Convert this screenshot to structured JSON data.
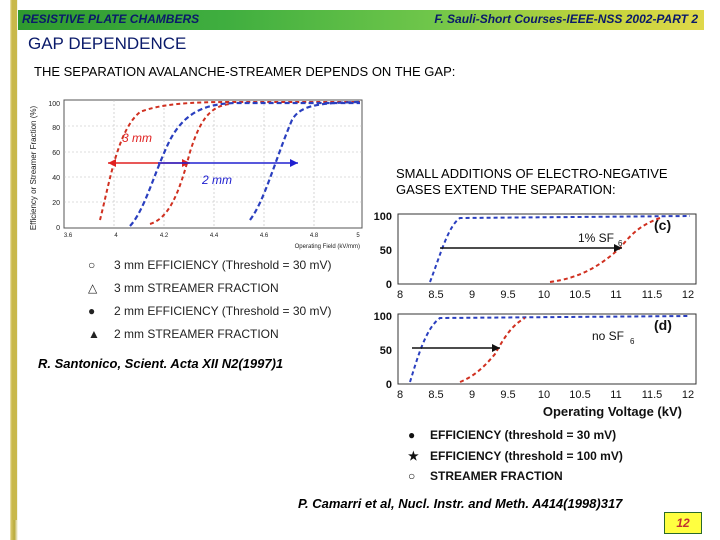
{
  "header": {
    "left": "RESISTIVE PLATE CHAMBERS",
    "right": "F. Sauli-Short Courses-IEEE-NSS 2002-PART 2"
  },
  "title": "GAP DEPENDENCE",
  "subtitle": "THE SEPARATION AVALANCHE-STREAMER DEPENDS ON THE GAP:",
  "note": "SMALL ADDITIONS OF ELECTRO-NEGATIVE GASES EXTEND THE SEPARATION:",
  "left_plot": {
    "ylabel": "Efficiency or Streamer Fraction (%)",
    "xlabel": "Operating Field (kV/mm)",
    "yticks": [
      "100",
      "80",
      "60",
      "40",
      "20",
      "0"
    ],
    "xticks": [
      "3.6",
      "4",
      "4.2",
      "4.4",
      "4.6",
      "4.8",
      "5"
    ],
    "label_3mm": "3 mm",
    "label_2mm": "2 mm"
  },
  "left_legend": [
    {
      "symbol": "○",
      "text": "3 mm EFFICIENCY (Threshold = 30 mV)"
    },
    {
      "symbol": "△",
      "text": "3 mm STREAMER FRACTION"
    },
    {
      "symbol": "●",
      "text": "2 mm EFFICIENCY (Threshold = 30 mV)"
    },
    {
      "symbol": "▲",
      "text": "2 mm STREAMER FRACTION"
    }
  ],
  "citation_left": "R. Santonico, Scient. Acta XII N2(1997)1",
  "right_plot": {
    "top_yticks": [
      "100",
      "50",
      "0"
    ],
    "bottom_yticks": [
      "100",
      "50",
      "0"
    ],
    "top_xticks": [
      "8",
      "8.5",
      "9",
      "9.5",
      "10",
      "10.5",
      "11",
      "11.5",
      "12"
    ],
    "bottom_xticks": [
      "8",
      "8.5",
      "9",
      "9.5",
      "10",
      "10.5",
      "11",
      "11.5",
      "12"
    ],
    "top_tag": "(c)",
    "bottom_tag": "(d)",
    "top_gas": "1% SF",
    "bottom_gas": "no SF",
    "subscript": "6",
    "xlabel": "Operating Voltage (kV)"
  },
  "right_legend": [
    {
      "symbol": "●",
      "text": "EFFICIENCY (threshold = 30 mV)"
    },
    {
      "symbol": "★",
      "text": "EFFICIENCY (threshold = 100 mV)"
    },
    {
      "symbol": "○",
      "text": "STREAMER FRACTION"
    }
  ],
  "citation_right": "P. Camarri et al, Nucl. Instr. and Meth. A414(1998)317",
  "page_number": "12",
  "colors": {
    "arrow_red": "#e02020",
    "arrow_blue": "#2020d0",
    "dash_blue": "#2a3fbf",
    "dash_red": "#d03020",
    "header_text": "#0a1a6a"
  }
}
